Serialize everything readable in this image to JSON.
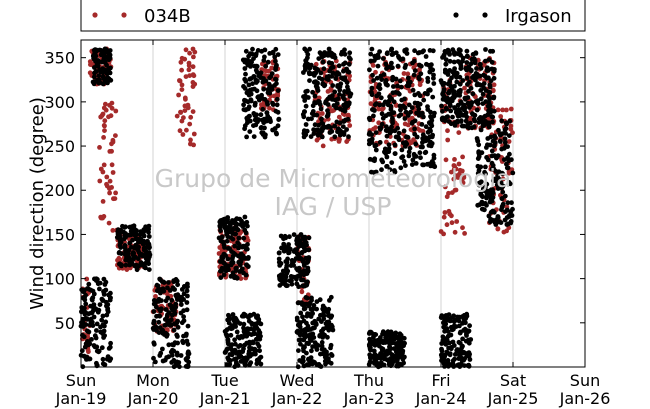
{
  "chart_data": {
    "type": "scatter",
    "ylabel": "Wind direction (degree)",
    "xlabel": "",
    "ylim": [
      0,
      370
    ],
    "yticks": [
      50,
      100,
      150,
      200,
      250,
      300,
      350
    ],
    "xlim_days": [
      0,
      7
    ],
    "xticks": [
      {
        "day": "Sun",
        "date": "Jan-19"
      },
      {
        "day": "Mon",
        "date": "Jan-20"
      },
      {
        "day": "Tue",
        "date": "Jan-21"
      },
      {
        "day": "Wed",
        "date": "Jan-22"
      },
      {
        "day": "Thu",
        "date": "Jan-23"
      },
      {
        "day": "Fri",
        "date": "Jan-24"
      },
      {
        "day": "Sat",
        "date": "Jan-25"
      },
      {
        "day": "Sun",
        "date": "Jan-26"
      }
    ],
    "grid": "vertical",
    "legend_placement": "top",
    "watermark": [
      "Grupo de Micrometeorologia",
      "IAG / USP"
    ],
    "series": [
      {
        "name": "034B",
        "color": "#a52a2a",
        "marker": "circle",
        "segments": [
          {
            "x": [
              "Jan-19 00:00",
              "Jan-19 03:00"
            ],
            "y": [
              0,
              100
            ]
          },
          {
            "x": [
              "Jan-19 03:00",
              "Jan-19 10:00"
            ],
            "y": [
              320,
              360
            ]
          },
          {
            "x": [
              "Jan-19 06:00",
              "Jan-19 12:00"
            ],
            "y": [
              150,
              300
            ]
          },
          {
            "x": [
              "Jan-19 12:00",
              "Jan-19 22:00"
            ],
            "y": [
              110,
              150
            ]
          },
          {
            "x": [
              "Jan-20 00:00",
              "Jan-20 08:00"
            ],
            "y": [
              40,
              100
            ]
          },
          {
            "x": [
              "Jan-20 08:00",
              "Jan-20 14:00"
            ],
            "y": [
              250,
              360
            ]
          },
          {
            "x": [
              "Jan-20 22:00",
              "Jan-21 08:00"
            ],
            "y": [
              100,
              160
            ]
          },
          {
            "x": [
              "Jan-21 12:00",
              "Jan-21 18:00"
            ],
            "y": [
              290,
              350
            ]
          },
          {
            "x": [
              "Jan-22 00:00",
              "Jan-22 04:00"
            ],
            "y": [
              70,
              150
            ]
          },
          {
            "x": [
              "Jan-22 06:00",
              "Jan-22 18:00"
            ],
            "y": [
              250,
              350
            ]
          },
          {
            "x": [
              "Jan-23 00:00",
              "Jan-23 18:00"
            ],
            "y": [
              250,
              350
            ]
          },
          {
            "x": [
              "Jan-24 00:00",
              "Jan-24 08:00"
            ],
            "y": [
              150,
              340
            ]
          },
          {
            "x": [
              "Jan-24 08:00",
              "Jan-24 18:00"
            ],
            "y": [
              270,
              350
            ]
          },
          {
            "x": [
              "Jan-24 16:00",
              "Jan-25 00:00"
            ],
            "y": [
              150,
              300
            ]
          }
        ]
      },
      {
        "name": "Irgason",
        "color": "#000000",
        "marker": "circle",
        "segments": [
          {
            "x": [
              "Jan-19 00:00",
              "Jan-19 10:00"
            ],
            "y": [
              0,
              100
            ]
          },
          {
            "x": [
              "Jan-19 04:00",
              "Jan-19 10:00"
            ],
            "y": [
              320,
              360
            ]
          },
          {
            "x": [
              "Jan-19 12:00",
              "Jan-19 23:00"
            ],
            "y": [
              110,
              160
            ]
          },
          {
            "x": [
              "Jan-20 00:00",
              "Jan-20 12:00"
            ],
            "y": [
              0,
              100
            ]
          },
          {
            "x": [
              "Jan-20 22:00",
              "Jan-21 08:00"
            ],
            "y": [
              100,
              170
            ]
          },
          {
            "x": [
              "Jan-21 00:00",
              "Jan-21 12:00"
            ],
            "y": [
              0,
              60
            ]
          },
          {
            "x": [
              "Jan-21 06:00",
              "Jan-21 18:00"
            ],
            "y": [
              260,
              360
            ]
          },
          {
            "x": [
              "Jan-21 18:00",
              "Jan-22 04:00"
            ],
            "y": [
              90,
              150
            ]
          },
          {
            "x": [
              "Jan-22 00:00",
              "Jan-22 12:00"
            ],
            "y": [
              0,
              80
            ]
          },
          {
            "x": [
              "Jan-22 02:00",
              "Jan-22 18:00"
            ],
            "y": [
              260,
              360
            ]
          },
          {
            "x": [
              "Jan-23 00:00",
              "Jan-23 12:00"
            ],
            "y": [
              0,
              40
            ]
          },
          {
            "x": [
              "Jan-23 00:00",
              "Jan-23 22:00"
            ],
            "y": [
              220,
              360
            ]
          },
          {
            "x": [
              "Jan-24 00:00",
              "Jan-24 10:00"
            ],
            "y": [
              0,
              60
            ]
          },
          {
            "x": [
              "Jan-24 00:00",
              "Jan-24 18:00"
            ],
            "y": [
              270,
              360
            ]
          },
          {
            "x": [
              "Jan-24 12:00",
              "Jan-25 00:00"
            ],
            "y": [
              160,
              280
            ]
          }
        ]
      }
    ]
  }
}
